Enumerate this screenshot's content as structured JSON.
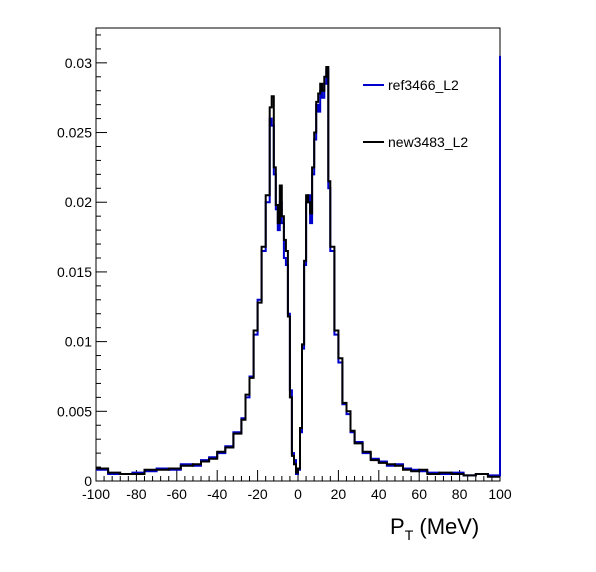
{
  "chart_data": {
    "type": "line",
    "title": "",
    "xlabel": {
      "main": "P",
      "sub": "T",
      "unit": " (MeV)"
    },
    "ylabel": "",
    "xlim": [
      -100,
      100
    ],
    "ylim": [
      0,
      0.0325
    ],
    "x_ticks": [
      -100,
      -80,
      -60,
      -40,
      -20,
      0,
      20,
      40,
      60,
      80,
      100
    ],
    "x_tick_labels": [
      "-100",
      "-80",
      "-60",
      "-40",
      "-20",
      "0",
      "20",
      "40",
      "60",
      "80",
      "100"
    ],
    "y_ticks": [
      0,
      0.005,
      0.01,
      0.015,
      0.02,
      0.025,
      0.03
    ],
    "y_tick_labels": [
      "0",
      "0.005",
      "0.01",
      "0.015",
      "0.02",
      "0.025",
      "0.03"
    ],
    "grid": false,
    "legend_position": "top-right",
    "colors": {
      "ref": "#0000cc",
      "new": "#000000"
    },
    "x": [
      -100,
      -94,
      -88,
      -82,
      -76,
      -70,
      -64,
      -58,
      -52,
      -48,
      -44,
      -40,
      -36,
      -32,
      -28,
      -26,
      -24,
      -22,
      -20,
      -18,
      -16,
      -14,
      -13,
      -12,
      -11,
      -10,
      -9,
      -8,
      -7,
      -6,
      -5,
      -4,
      -3,
      -2,
      -1,
      0,
      1,
      2,
      3,
      4,
      5,
      6,
      7,
      8,
      9,
      10,
      11,
      12,
      13,
      14,
      15,
      16,
      18,
      20,
      22,
      24,
      26,
      28,
      32,
      36,
      40,
      44,
      48,
      52,
      56,
      60,
      64,
      70,
      76,
      82,
      88,
      94,
      100
    ],
    "series": [
      {
        "name": "ref3466_L2",
        "values": [
          0.0008,
          0.0005,
          0.0005,
          0.0006,
          0.0007,
          0.0009,
          0.0008,
          0.0012,
          0.0011,
          0.0015,
          0.0017,
          0.002,
          0.0025,
          0.0035,
          0.0045,
          0.006,
          0.0075,
          0.0105,
          0.013,
          0.0165,
          0.02,
          0.026,
          0.0255,
          0.022,
          0.0195,
          0.018,
          0.02,
          0.0185,
          0.016,
          0.0155,
          0.012,
          0.0065,
          0.002,
          0.0015,
          0.0005,
          0.0008,
          0.0035,
          0.0095,
          0.0155,
          0.02,
          0.0205,
          0.0185,
          0.022,
          0.0245,
          0.027,
          0.0265,
          0.028,
          0.0275,
          0.0285,
          0.0295,
          0.021,
          0.0165,
          0.0105,
          0.0085,
          0.0055,
          0.0048,
          0.0035,
          0.0028,
          0.002,
          0.0016,
          0.0014,
          0.0011,
          0.0012,
          0.0009,
          0.0008,
          0.0007,
          0.0006,
          0.0005,
          0.0006,
          0.0004,
          0.0005,
          0.0004,
          0.0305
        ]
      },
      {
        "name": "new3483_L2",
        "values": [
          0.0009,
          0.0006,
          0.0005,
          0.0005,
          0.0008,
          0.0008,
          0.0009,
          0.0011,
          0.0012,
          0.0014,
          0.0016,
          0.0021,
          0.0024,
          0.0034,
          0.0044,
          0.0062,
          0.0074,
          0.0108,
          0.0128,
          0.0168,
          0.0205,
          0.0268,
          0.0276,
          0.0225,
          0.0198,
          0.0185,
          0.0212,
          0.019,
          0.0173,
          0.0165,
          0.0118,
          0.006,
          0.0018,
          0.0012,
          0.0006,
          0.0009,
          0.0038,
          0.0098,
          0.0158,
          0.0205,
          0.02,
          0.0192,
          0.0225,
          0.025,
          0.0272,
          0.0278,
          0.0285,
          0.028,
          0.029,
          0.0297,
          0.0215,
          0.0168,
          0.0108,
          0.0088,
          0.0056,
          0.005,
          0.0036,
          0.0027,
          0.0021,
          0.0015,
          0.0013,
          0.0012,
          0.0011,
          0.0008,
          0.0007,
          0.0008,
          0.0005,
          0.0006,
          0.0005,
          0.0004,
          0.0005,
          0.0003,
          0.0003
        ]
      }
    ]
  }
}
